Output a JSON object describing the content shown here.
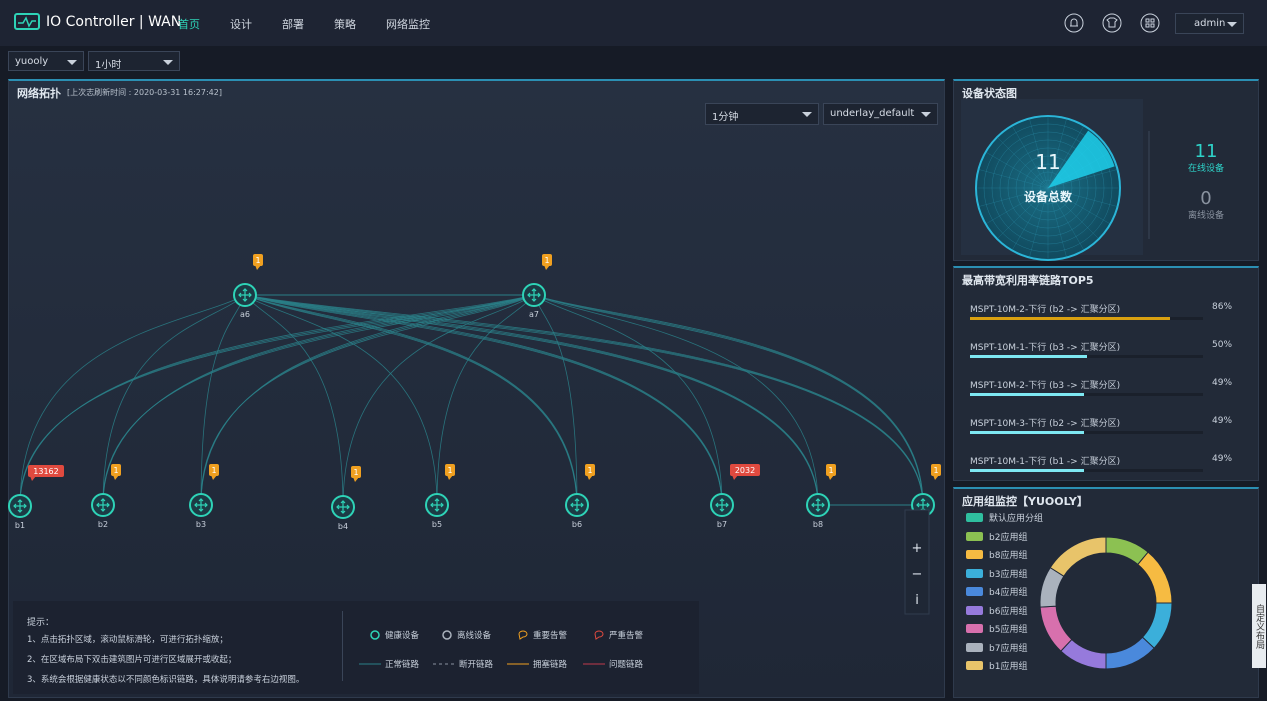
{
  "header": {
    "logo": "IO Controller | WAN",
    "nav": [
      "首页",
      "设计",
      "部署",
      "策略",
      "网络监控"
    ],
    "user": "admin"
  },
  "filters": {
    "site": "yuooly",
    "range": "1小时"
  },
  "topology": {
    "title": "网络拓扑",
    "refresh": "[上次志刷新时间 : 2020-03-31 16:27:42]",
    "interval": "1分钟",
    "underlay": "underlay_default",
    "nodes": [
      {
        "label": "a6",
        "badge": 1
      },
      {
        "label": "a7",
        "badge": 1
      },
      {
        "label": "b1",
        "badge": 13162
      },
      {
        "label": "b2",
        "badge": 1
      },
      {
        "label": "b3",
        "badge": 1
      },
      {
        "label": "b4",
        "badge": 1
      },
      {
        "label": "b5",
        "badge": 1
      },
      {
        "label": "b6",
        "badge": 1
      },
      {
        "label": "b7",
        "badge": 2032
      },
      {
        "label": "b8",
        "badge": 1
      },
      {
        "label": null,
        "badge": 1
      }
    ],
    "tips": {
      "title": "提示：",
      "lines": [
        "1、点击拓扑区域，滚动鼠标滑轮，可进行拓扑缩放；",
        "2、在区域布局下双击建筑图片可进行区域展开或收起；",
        "3、系统会根据健康状态以不同颜色标识链路，具体说明请参考右边视图。"
      ]
    },
    "legend": [
      "健康设备",
      "离线设备",
      "重要告警",
      "严重告警",
      "正常链路",
      "断开链路",
      "拥塞链路",
      "问题链路"
    ],
    "zoom": [
      "+",
      "−",
      "i"
    ]
  },
  "device_status": {
    "title": "设备状态图",
    "total": 11,
    "total_label": "设备总数",
    "online": 11,
    "online_label": "在线设备",
    "offline": 0,
    "offline_label": "离线设备"
  },
  "top5": {
    "title": "最高带宽利用率链路TOP5",
    "names": [
      "MSPT-10M-2-下行 (b2 -> 汇聚分区)",
      "MSPT-10M-1-下行 (b3 -> 汇聚分区)",
      "MSPT-10M-2-下行 (b3 -> 汇聚分区)",
      "MSPT-10M-3-下行 (b2 -> 汇聚分区)",
      "MSPT-10M-1-下行 (b1 -> 汇聚分区)"
    ],
    "values": [
      86,
      50,
      49,
      49,
      49
    ],
    "value_labels": [
      "86%",
      "50%",
      "49%",
      "49%",
      "49%"
    ]
  },
  "app_groups": {
    "title": "应用组监控【YUOOLY】",
    "names": [
      "默认应用分组",
      "b2应用组",
      "b8应用组",
      "b3应用组",
      "b4应用组",
      "b6应用组",
      "b5应用组",
      "b7应用组",
      "b1应用组"
    ],
    "colors": [
      "#2fbf9f",
      "#8cc152",
      "#f6bb42",
      "#3bafda",
      "#4a89dc",
      "#967adc",
      "#d770ad",
      "#aab2bd",
      "#e8c46a"
    ],
    "values": [
      0,
      11,
      14,
      12,
      13,
      12,
      12,
      10,
      16
    ]
  },
  "side_tab": "自定义布局"
}
